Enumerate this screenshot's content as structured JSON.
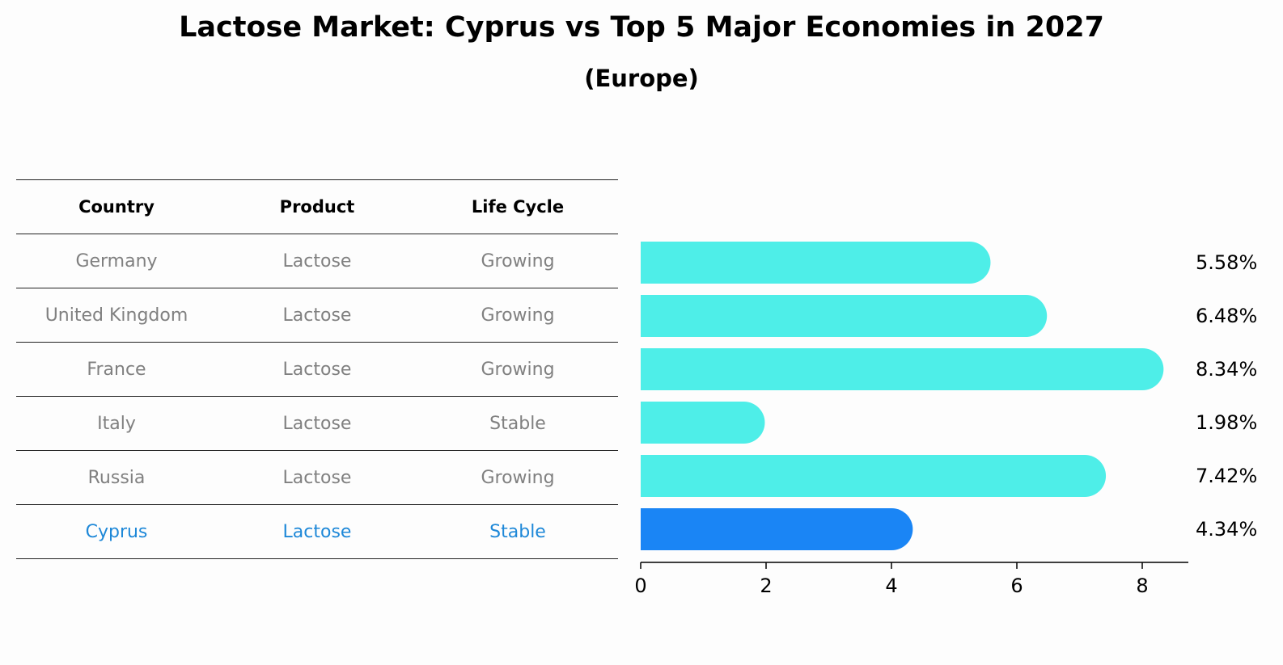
{
  "title": "Lactose Market: Cyprus vs Top 5 Major Economies in 2027",
  "subtitle": "(Europe)",
  "table": {
    "headers": [
      "Country",
      "Product",
      "Life Cycle"
    ],
    "rows": [
      [
        "Germany",
        "Lactose",
        "Growing"
      ],
      [
        "United Kingdom",
        "Lactose",
        "Growing"
      ],
      [
        "France",
        "Lactose",
        "Growing"
      ],
      [
        "Italy",
        "Lactose",
        "Stable"
      ],
      [
        "Russia",
        "Lactose",
        "Growing"
      ],
      [
        "Cyprus",
        "Lactose",
        "Stable"
      ]
    ],
    "highlight_row": 5,
    "text_color": "#808080",
    "highlight_color": "#1e88d8"
  },
  "chart_data": {
    "type": "bar",
    "orientation": "horizontal",
    "categories": [
      "Germany",
      "United Kingdom",
      "France",
      "Italy",
      "Russia",
      "Cyprus"
    ],
    "values": [
      5.58,
      6.48,
      8.34,
      1.98,
      7.42,
      4.34
    ],
    "value_labels": [
      "5.58%",
      "6.48%",
      "8.34%",
      "1.98%",
      "7.42%",
      "4.34%"
    ],
    "xlim": [
      0,
      8.76
    ],
    "xticks": [
      0,
      2,
      4,
      6,
      8
    ],
    "grid": false,
    "colors": {
      "bar": "#4eeee8",
      "highlight": "#1a85f5"
    },
    "highlight_index": 5
  }
}
